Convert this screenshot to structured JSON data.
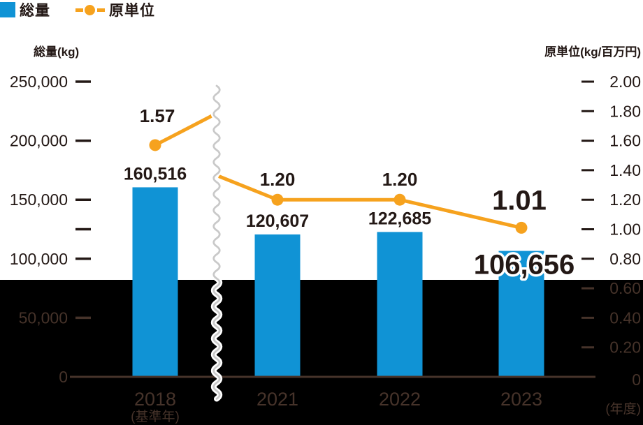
{
  "legend": {
    "total_label": "総量",
    "intensity_label": "原単位"
  },
  "axes": {
    "left_title": "総量(kg)",
    "right_title": "原単位(kg/百万円)",
    "x_unit_label": "(年度)"
  },
  "chart_data": {
    "type": "combo-bar-line",
    "title": "",
    "categories": [
      "2018",
      "2021",
      "2022",
      "2023"
    ],
    "category_note": "(基準年)",
    "series": [
      {
        "name": "総量",
        "chart": "bar",
        "axis": "left",
        "unit": "kg",
        "values": [
          160516,
          120607,
          122685,
          106656
        ],
        "value_labels": [
          "160,516",
          "120,607",
          "122,685",
          "106,656"
        ]
      },
      {
        "name": "原単位",
        "chart": "line",
        "axis": "right",
        "unit": "kg/百万円",
        "values": [
          1.57,
          1.2,
          1.2,
          1.01
        ],
        "value_labels": [
          "1.57",
          "1.20",
          "1.20",
          "1.01"
        ]
      }
    ],
    "left_axis": {
      "title": "総量(kg)",
      "min": 0,
      "max": 250000,
      "tick_interval": 50000,
      "tick_labels": [
        "0",
        "50,000",
        "100,000",
        "150,000",
        "200,000",
        "250,000"
      ],
      "minor_ticks": [
        125000
      ]
    },
    "right_axis": {
      "title": "原単位(kg/百万円)",
      "min": 0,
      "max": 2.0,
      "tick_interval": 0.2,
      "tick_labels": [
        "0",
        "0.20",
        "0.40",
        "0.60",
        "0.80",
        "1.00",
        "1.20",
        "1.40",
        "1.60",
        "1.80",
        "2.00"
      ]
    },
    "x_axis": {
      "unit": "(年度)",
      "break_after": "2018",
      "break_style": "wavy-vertical"
    },
    "emphasized_category": "2023",
    "grid": false,
    "legend_position": "top-left"
  },
  "colors": {
    "bar_blue": "#1093d5",
    "line_orange": "#f6a21e",
    "text_dark": "#231815",
    "text_on_black": "#46332a",
    "band_black": "#000000",
    "break_gray": "#c9c9c9"
  }
}
